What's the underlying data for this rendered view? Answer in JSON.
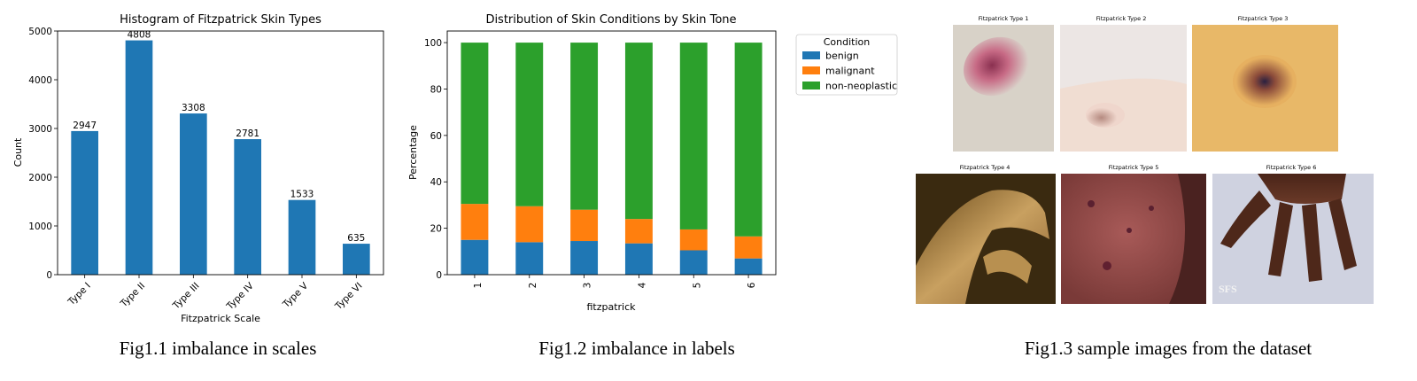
{
  "chart_data": [
    {
      "type": "bar",
      "title": "Histogram of Fitzpatrick Skin Types",
      "xlabel": "Fitzpatrick Scale",
      "ylabel": "Count",
      "categories": [
        "Type I",
        "Type II",
        "Type III",
        "Type IV",
        "Type V",
        "Type VI"
      ],
      "values": [
        2947,
        4808,
        3308,
        2781,
        1533,
        635
      ],
      "ylim": [
        0,
        5000
      ],
      "yticks": [
        0,
        1000,
        2000,
        3000,
        4000,
        5000
      ],
      "color": "#1f77b4",
      "grid": false
    },
    {
      "type": "bar",
      "stacked": true,
      "title": "Distribution of Skin Conditions by Skin Tone",
      "xlabel": "fitzpatrick",
      "ylabel": "Percentage",
      "categories": [
        "1",
        "2",
        "3",
        "4",
        "5",
        "6"
      ],
      "series": [
        {
          "name": "benign",
          "color": "#1f77b4",
          "values": [
            15,
            14,
            14.5,
            13.5,
            10.5,
            7
          ]
        },
        {
          "name": "malignant",
          "color": "#ff7f0e",
          "values": [
            15.5,
            15.5,
            13.5,
            10.5,
            9,
            9.5
          ]
        },
        {
          "name": "non-neoplastic",
          "color": "#2ca02c",
          "values": [
            69.5,
            70.5,
            72,
            76,
            80.5,
            83.5
          ]
        }
      ],
      "ylim": [
        0,
        105
      ],
      "yticks": [
        0,
        20,
        40,
        60,
        80,
        100
      ],
      "legend_title": "Condition",
      "legend_position": "outside top-right",
      "grid": false
    }
  ],
  "captions": {
    "fig1": "Fig1.1 imbalance in scales",
    "fig2": "Fig1.2 imbalance in labels",
    "fig3": "Fig1.3 sample images from the dataset"
  },
  "samples": [
    {
      "title": "Fitzpatrick Type 1"
    },
    {
      "title": "Fitzpatrick Type 2"
    },
    {
      "title": "Fitzpatrick Type 3"
    },
    {
      "title": "Fitzpatrick Type 4"
    },
    {
      "title": "Fitzpatrick Type 5"
    },
    {
      "title": "Fitzpatrick Type 6",
      "watermark": "SFS"
    }
  ]
}
